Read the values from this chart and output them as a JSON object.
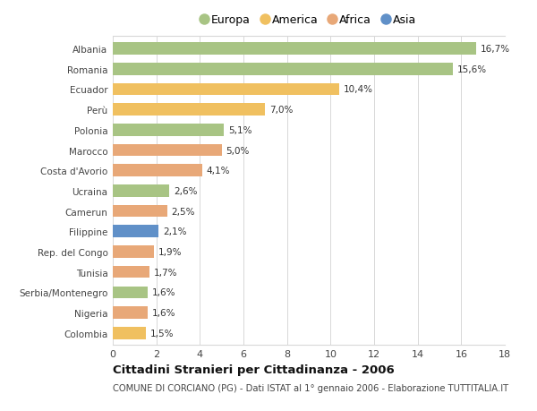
{
  "countries": [
    "Albania",
    "Romania",
    "Ecuador",
    "Perù",
    "Polonia",
    "Marocco",
    "Costa d'Avorio",
    "Ucraina",
    "Camerun",
    "Filippine",
    "Rep. del Congo",
    "Tunisia",
    "Serbia/Montenegro",
    "Nigeria",
    "Colombia"
  ],
  "values": [
    16.7,
    15.6,
    10.4,
    7.0,
    5.1,
    5.0,
    4.1,
    2.6,
    2.5,
    2.1,
    1.9,
    1.7,
    1.6,
    1.6,
    1.5
  ],
  "labels": [
    "16,7%",
    "15,6%",
    "10,4%",
    "7,0%",
    "5,1%",
    "5,0%",
    "4,1%",
    "2,6%",
    "2,5%",
    "2,1%",
    "1,9%",
    "1,7%",
    "1,6%",
    "1,6%",
    "1,5%"
  ],
  "continents": [
    "Europa",
    "Europa",
    "America",
    "America",
    "Europa",
    "Africa",
    "Africa",
    "Europa",
    "Africa",
    "Asia",
    "Africa",
    "Africa",
    "Europa",
    "Africa",
    "America"
  ],
  "continent_colors": {
    "Europa": "#a8c484",
    "America": "#f0c060",
    "Africa": "#e8a878",
    "Asia": "#6090c8"
  },
  "legend_labels": [
    "Europa",
    "America",
    "Africa",
    "Asia"
  ],
  "legend_colors": [
    "#a8c484",
    "#f0c060",
    "#e8a878",
    "#6090c8"
  ],
  "title": "Cittadini Stranieri per Cittadinanza - 2006",
  "subtitle": "COMUNE DI CORCIANO (PG) - Dati ISTAT al 1° gennaio 2006 - Elaborazione TUTTITALIA.IT",
  "xlim": [
    0,
    18
  ],
  "xticks": [
    0,
    2,
    4,
    6,
    8,
    10,
    12,
    14,
    16,
    18
  ],
  "background_color": "#ffffff",
  "grid_color": "#d8d8d8",
  "bar_height": 0.6,
  "figsize": [
    6.0,
    4.6
  ],
  "dpi": 100
}
